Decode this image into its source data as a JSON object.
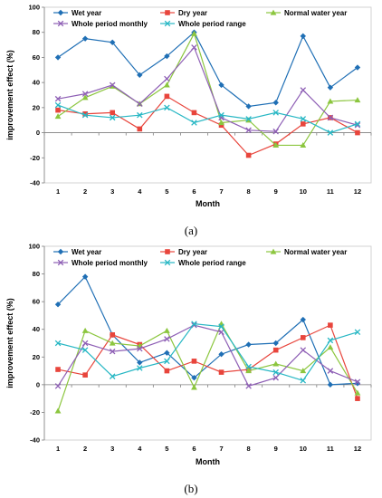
{
  "figure": {
    "captions": [
      "(a)",
      "(b)"
    ]
  },
  "chart_data": [
    {
      "type": "line",
      "xlabel": "Month",
      "ylabel": "improvement effect (%)",
      "x": [
        1,
        2,
        3,
        4,
        5,
        6,
        7,
        8,
        9,
        10,
        11,
        12
      ],
      "ylim": [
        -40,
        100
      ],
      "yticks": [
        -40,
        -20,
        0,
        20,
        40,
        60,
        80,
        100
      ],
      "grid": false,
      "legend": "top",
      "series": [
        {
          "name": "Wet year",
          "color": "#1f6fb5",
          "marker": "diamond",
          "values": [
            60,
            75,
            72,
            46,
            61,
            80,
            38,
            21,
            24,
            77,
            36,
            52
          ]
        },
        {
          "name": "Dry year",
          "color": "#e8453c",
          "marker": "square",
          "values": [
            18,
            15,
            16,
            3,
            29,
            16,
            6,
            -18,
            -9,
            7,
            12,
            0
          ]
        },
        {
          "name": "Normal water year",
          "color": "#8cc63f",
          "marker": "triangle",
          "values": [
            13,
            28,
            37,
            23,
            38,
            79,
            8,
            10,
            -10,
            -10,
            25,
            26
          ]
        },
        {
          "name": "Whole period monthly",
          "color": "#8e5fb5",
          "marker": "x",
          "values": [
            27,
            31,
            38,
            23,
            43,
            68,
            12,
            2,
            1,
            34,
            12,
            6
          ]
        },
        {
          "name": "Whole period range",
          "color": "#27b7c4",
          "marker": "x",
          "values": [
            22,
            14,
            12,
            14,
            20,
            8,
            14,
            11,
            16,
            11,
            0,
            7
          ]
        }
      ]
    },
    {
      "type": "line",
      "xlabel": "Month",
      "ylabel": "improvement effect (%)",
      "x": [
        1,
        2,
        3,
        4,
        5,
        6,
        7,
        8,
        9,
        10,
        11,
        12
      ],
      "ylim": [
        -40,
        100
      ],
      "yticks": [
        -40,
        -20,
        0,
        20,
        40,
        60,
        80,
        100
      ],
      "grid": false,
      "legend": "top",
      "series": [
        {
          "name": "Wet year",
          "color": "#1f6fb5",
          "marker": "diamond",
          "values": [
            58,
            78,
            36,
            16,
            23,
            5,
            22,
            29,
            30,
            47,
            0,
            1
          ]
        },
        {
          "name": "Dry year",
          "color": "#e8453c",
          "marker": "square",
          "values": [
            11,
            7,
            36,
            29,
            10,
            17,
            9,
            11,
            25,
            34,
            43,
            -10
          ]
        },
        {
          "name": "Normal water year",
          "color": "#8cc63f",
          "marker": "triangle",
          "values": [
            -19,
            39,
            30,
            28,
            39,
            -2,
            44,
            10,
            15,
            10,
            27,
            -6
          ]
        },
        {
          "name": "Whole period monthly",
          "color": "#8e5fb5",
          "marker": "x",
          "values": [
            -1,
            30,
            24,
            26,
            33,
            43,
            38,
            -1,
            5,
            25,
            10,
            2
          ]
        },
        {
          "name": "Whole period range",
          "color": "#27b7c4",
          "marker": "x",
          "values": [
            30,
            25,
            6,
            12,
            17,
            44,
            42,
            13,
            9,
            3,
            32,
            38
          ]
        }
      ]
    }
  ]
}
